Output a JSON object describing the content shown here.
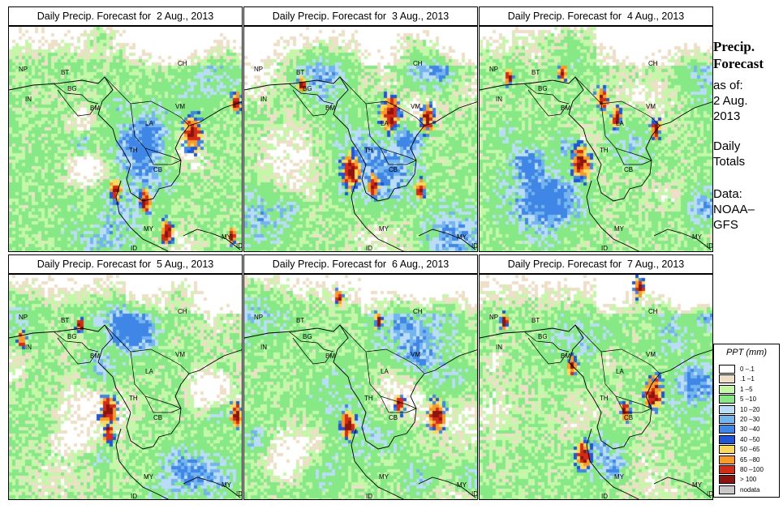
{
  "panels": [
    {
      "title": "Daily Precip. Forecast for  2 Aug., 2013",
      "seed": 11,
      "hot": [
        [
          0.78,
          0.47,
          0.9
        ],
        [
          0.58,
          0.77,
          0.6
        ],
        [
          0.45,
          0.72,
          0.55
        ],
        [
          0.97,
          0.33,
          0.5
        ],
        [
          0.67,
          0.91,
          0.6
        ],
        [
          0.95,
          0.93,
          0.4
        ]
      ]
    },
    {
      "title": "Daily Precip. Forecast for  3 Aug., 2013",
      "seed": 23,
      "hot": [
        [
          0.62,
          0.38,
          0.9
        ],
        [
          0.78,
          0.4,
          0.7
        ],
        [
          0.45,
          0.64,
          0.9
        ],
        [
          0.55,
          0.7,
          0.6
        ],
        [
          0.75,
          0.72,
          0.5
        ],
        [
          0.24,
          0.25,
          0.4
        ]
      ]
    },
    {
      "title": "Daily Precip. Forecast for  4 Aug., 2013",
      "seed": 37,
      "hot": [
        [
          0.43,
          0.6,
          0.9
        ],
        [
          0.52,
          0.32,
          0.6
        ],
        [
          0.58,
          0.4,
          0.5
        ],
        [
          0.75,
          0.45,
          0.5
        ],
        [
          0.12,
          0.22,
          0.4
        ],
        [
          0.35,
          0.2,
          0.4
        ]
      ]
    },
    {
      "title": "Daily Precip. Forecast for  5 Aug., 2013",
      "seed": 49,
      "hot": [
        [
          0.42,
          0.6,
          0.8
        ],
        [
          0.97,
          0.62,
          0.6
        ],
        [
          0.42,
          0.7,
          0.5
        ],
        [
          0.05,
          0.28,
          0.4
        ],
        [
          0.3,
          0.22,
          0.4
        ]
      ]
    },
    {
      "title": "Daily Precip. Forecast for  6 Aug., 2013",
      "seed": 61,
      "hot": [
        [
          0.44,
          0.66,
          0.7
        ],
        [
          0.82,
          0.62,
          0.8
        ],
        [
          0.4,
          0.1,
          0.4
        ],
        [
          0.57,
          0.2,
          0.4
        ],
        [
          0.66,
          0.57,
          0.5
        ]
      ]
    },
    {
      "title": "Daily Precip. Forecast for  7 Aug., 2013",
      "seed": 73,
      "hot": [
        [
          0.74,
          0.52,
          0.9
        ],
        [
          0.44,
          0.8,
          0.7
        ],
        [
          0.68,
          0.05,
          0.5
        ],
        [
          0.39,
          0.4,
          0.5
        ],
        [
          0.1,
          0.2,
          0.4
        ],
        [
          0.62,
          0.6,
          0.5
        ]
      ]
    }
  ],
  "country_labels": [
    "NP",
    "BT",
    "BG",
    "IN",
    "BM",
    "CH",
    "VM",
    "LA",
    "TH",
    "CB",
    "MY",
    "ID",
    "MY",
    "ID"
  ],
  "sidebar": {
    "heading1": "Precip.",
    "heading2": "Forecast",
    "asof1": "as of:",
    "asof2": "2 Aug.",
    "asof3": "2013",
    "daily1": "Daily",
    "daily2": "Totals",
    "data1": "Data:",
    "data2": "NOAA–",
    "data3": "GFS"
  },
  "legend": {
    "title": "PPT (mm)",
    "items": [
      {
        "label": "0 –.1",
        "color": "#ffffff"
      },
      {
        "label": ".1 –1",
        "color": "#eedfc8"
      },
      {
        "label": "1 –5",
        "color": "#c4f7a8"
      },
      {
        "label": "5 –10",
        "color": "#86e986"
      },
      {
        "label": "10 –20",
        "color": "#b9dcf7"
      },
      {
        "label": "20 –30",
        "color": "#74b4ef"
      },
      {
        "label": "30 –40",
        "color": "#3f86e6"
      },
      {
        "label": "40 –50",
        "color": "#1f55d6"
      },
      {
        "label": "50 –65",
        "color": "#fbd95f"
      },
      {
        "label": "65 –80",
        "color": "#f79a2a"
      },
      {
        "label": "80 –100",
        "color": "#d42a18"
      },
      {
        "label": "> 100",
        "color": "#8a1410"
      },
      {
        "label": "nodata",
        "color": "#c8c8c8"
      }
    ]
  }
}
